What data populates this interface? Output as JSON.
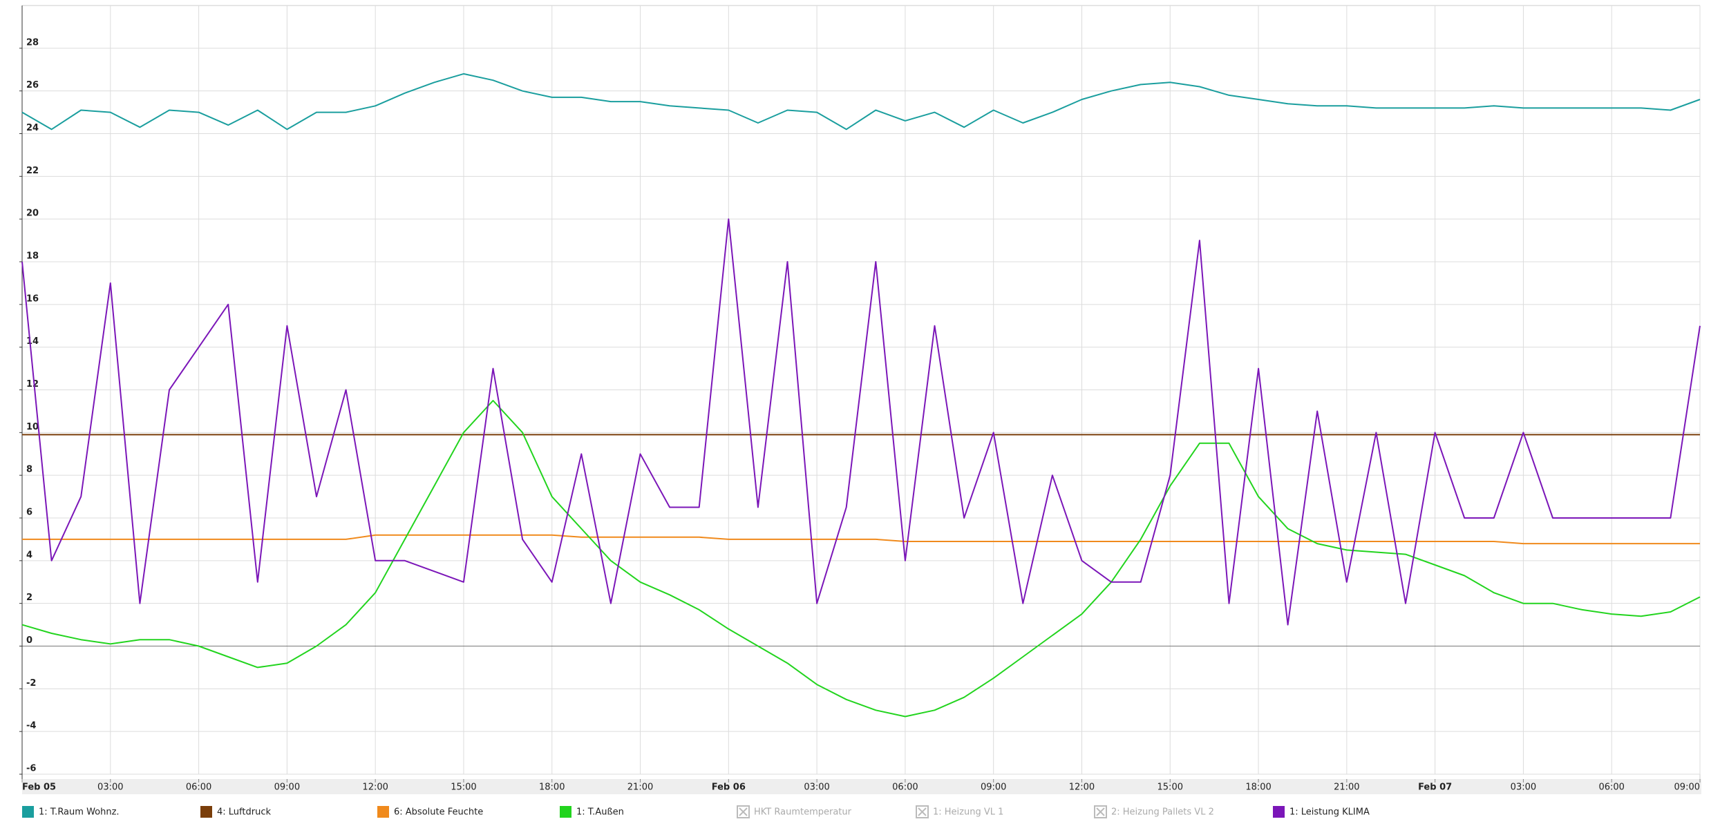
{
  "chart_data": {
    "type": "line",
    "x": [
      0,
      1,
      2,
      3,
      4,
      5,
      6,
      7,
      8,
      9,
      10,
      11,
      12,
      13,
      14,
      15,
      16,
      17,
      18,
      19,
      20,
      21,
      22,
      23,
      24,
      25,
      26,
      27,
      28,
      29,
      30,
      31,
      32,
      33,
      34,
      35,
      36,
      37,
      38,
      39,
      40,
      41,
      42,
      43,
      44,
      45,
      46,
      47,
      48,
      49,
      50,
      51,
      52,
      53,
      54,
      55,
      56,
      57
    ],
    "xlim": [
      0,
      57
    ],
    "xticks": [
      {
        "value": 0,
        "label": "Feb 05"
      },
      {
        "value": 3,
        "label": "03:00"
      },
      {
        "value": 6,
        "label": "06:00"
      },
      {
        "value": 9,
        "label": "09:00"
      },
      {
        "value": 12,
        "label": "12:00"
      },
      {
        "value": 15,
        "label": "15:00"
      },
      {
        "value": 18,
        "label": "18:00"
      },
      {
        "value": 21,
        "label": "21:00"
      },
      {
        "value": 24,
        "label": "Feb 06"
      },
      {
        "value": 27,
        "label": "03:00"
      },
      {
        "value": 30,
        "label": "06:00"
      },
      {
        "value": 33,
        "label": "09:00"
      },
      {
        "value": 36,
        "label": "12:00"
      },
      {
        "value": 39,
        "label": "15:00"
      },
      {
        "value": 42,
        "label": "18:00"
      },
      {
        "value": 45,
        "label": "21:00"
      },
      {
        "value": 48,
        "label": "Feb 07"
      },
      {
        "value": 51,
        "label": "03:00"
      },
      {
        "value": 54,
        "label": "06:00"
      },
      {
        "value": 57,
        "label": "09:00"
      }
    ],
    "ylim": [
      -6,
      30
    ],
    "yticks": [
      -6,
      -4,
      -2,
      0,
      2,
      4,
      6,
      8,
      10,
      12,
      14,
      16,
      18,
      20,
      22,
      24,
      26,
      28
    ],
    "grid": true,
    "legend": "bottom",
    "series": [
      {
        "name": "1: T.Raum Wohnz.",
        "color": "#1a9e9e",
        "values": [
          25,
          24.2,
          25.1,
          25,
          24.3,
          25.1,
          25,
          24.4,
          25.1,
          24.2,
          25,
          25,
          25.3,
          25.9,
          26.4,
          26.8,
          26.5,
          26,
          25.7,
          25.7,
          25.5,
          25.5,
          25.3,
          25.2,
          25.1,
          24.5,
          25.1,
          25,
          24.2,
          25.1,
          24.6,
          25,
          24.3,
          25.1,
          24.5,
          25,
          25.6,
          26,
          26.3,
          26.4,
          26.2,
          25.8,
          25.6,
          25.4,
          25.3,
          25.3,
          25.2,
          25.2,
          25.2,
          25.2,
          25.3,
          25.2,
          25.2,
          25.2,
          25.2,
          25.2,
          25.1,
          25.6
        ]
      },
      {
        "name": "4: Luftdruck",
        "color": "#7a3e0a",
        "values": [
          9.9,
          9.9,
          9.9,
          9.9,
          9.9,
          9.9,
          9.9,
          9.9,
          9.9,
          9.9,
          9.9,
          9.9,
          9.9,
          9.9,
          9.9,
          9.9,
          9.9,
          9.9,
          9.9,
          9.9,
          9.9,
          9.9,
          9.9,
          9.9,
          9.9,
          9.9,
          9.9,
          9.9,
          9.9,
          9.9,
          9.9,
          9.9,
          9.9,
          9.9,
          9.9,
          9.9,
          9.9,
          9.9,
          9.9,
          9.9,
          9.9,
          9.9,
          9.9,
          9.9,
          9.9,
          9.9,
          9.9,
          9.9,
          9.9,
          9.9,
          9.9,
          9.9,
          9.9,
          9.9,
          9.9,
          9.9,
          9.9,
          9.9
        ]
      },
      {
        "name": "6: Absolute Feuchte",
        "color": "#f08a1c",
        "values": [
          5,
          5,
          5,
          5,
          5,
          5,
          5,
          5,
          5,
          5,
          5,
          5,
          5.2,
          5.2,
          5.2,
          5.2,
          5.2,
          5.2,
          5.2,
          5.1,
          5.1,
          5.1,
          5.1,
          5.1,
          5,
          5,
          5,
          5,
          5,
          5,
          4.9,
          4.9,
          4.9,
          4.9,
          4.9,
          4.9,
          4.9,
          4.9,
          4.9,
          4.9,
          4.9,
          4.9,
          4.9,
          4.9,
          4.9,
          4.9,
          4.9,
          4.9,
          4.9,
          4.9,
          4.9,
          4.8,
          4.8,
          4.8,
          4.8,
          4.8,
          4.8,
          4.8
        ]
      },
      {
        "name": "1: T.Außen",
        "color": "#22d41e",
        "values": [
          1,
          0.6,
          0.3,
          0.1,
          0.3,
          0.3,
          0,
          -0.5,
          -1,
          -0.8,
          0,
          1,
          2.5,
          5,
          7.5,
          10,
          11.5,
          10,
          7,
          5.5,
          4,
          3,
          2.4,
          1.7,
          0.8,
          0,
          -0.8,
          -1.8,
          -2.5,
          -3,
          -3.3,
          -3,
          -2.4,
          -1.5,
          -0.5,
          0.5,
          1.5,
          3,
          5,
          7.5,
          9.5,
          9.5,
          7,
          5.5,
          4.8,
          4.5,
          4.4,
          4.3,
          3.8,
          3.3,
          2.5,
          2,
          2,
          1.7,
          1.5,
          1.4,
          1.6,
          2.3
        ]
      },
      {
        "name": "1: Leistung KLIMA",
        "color": "#7b16b8",
        "values": [
          18,
          4,
          7,
          17,
          2,
          12,
          14,
          16,
          3,
          15,
          7,
          12,
          4,
          4,
          3.5,
          3,
          13,
          5,
          3,
          9,
          2,
          9,
          6.5,
          6.5,
          20,
          6.5,
          18,
          2,
          6.5,
          18,
          4,
          15,
          6,
          10,
          2,
          8,
          4,
          3,
          3,
          8,
          19,
          2,
          13,
          1,
          11,
          3,
          10,
          2,
          10,
          6,
          6,
          10,
          6,
          6,
          6,
          6,
          6,
          15
        ]
      }
    ],
    "hidden_series": [
      "HKT Raumtemperatur",
      "1: Heizung VL 1",
      "2: Heizung Pallets VL 2"
    ]
  }
}
